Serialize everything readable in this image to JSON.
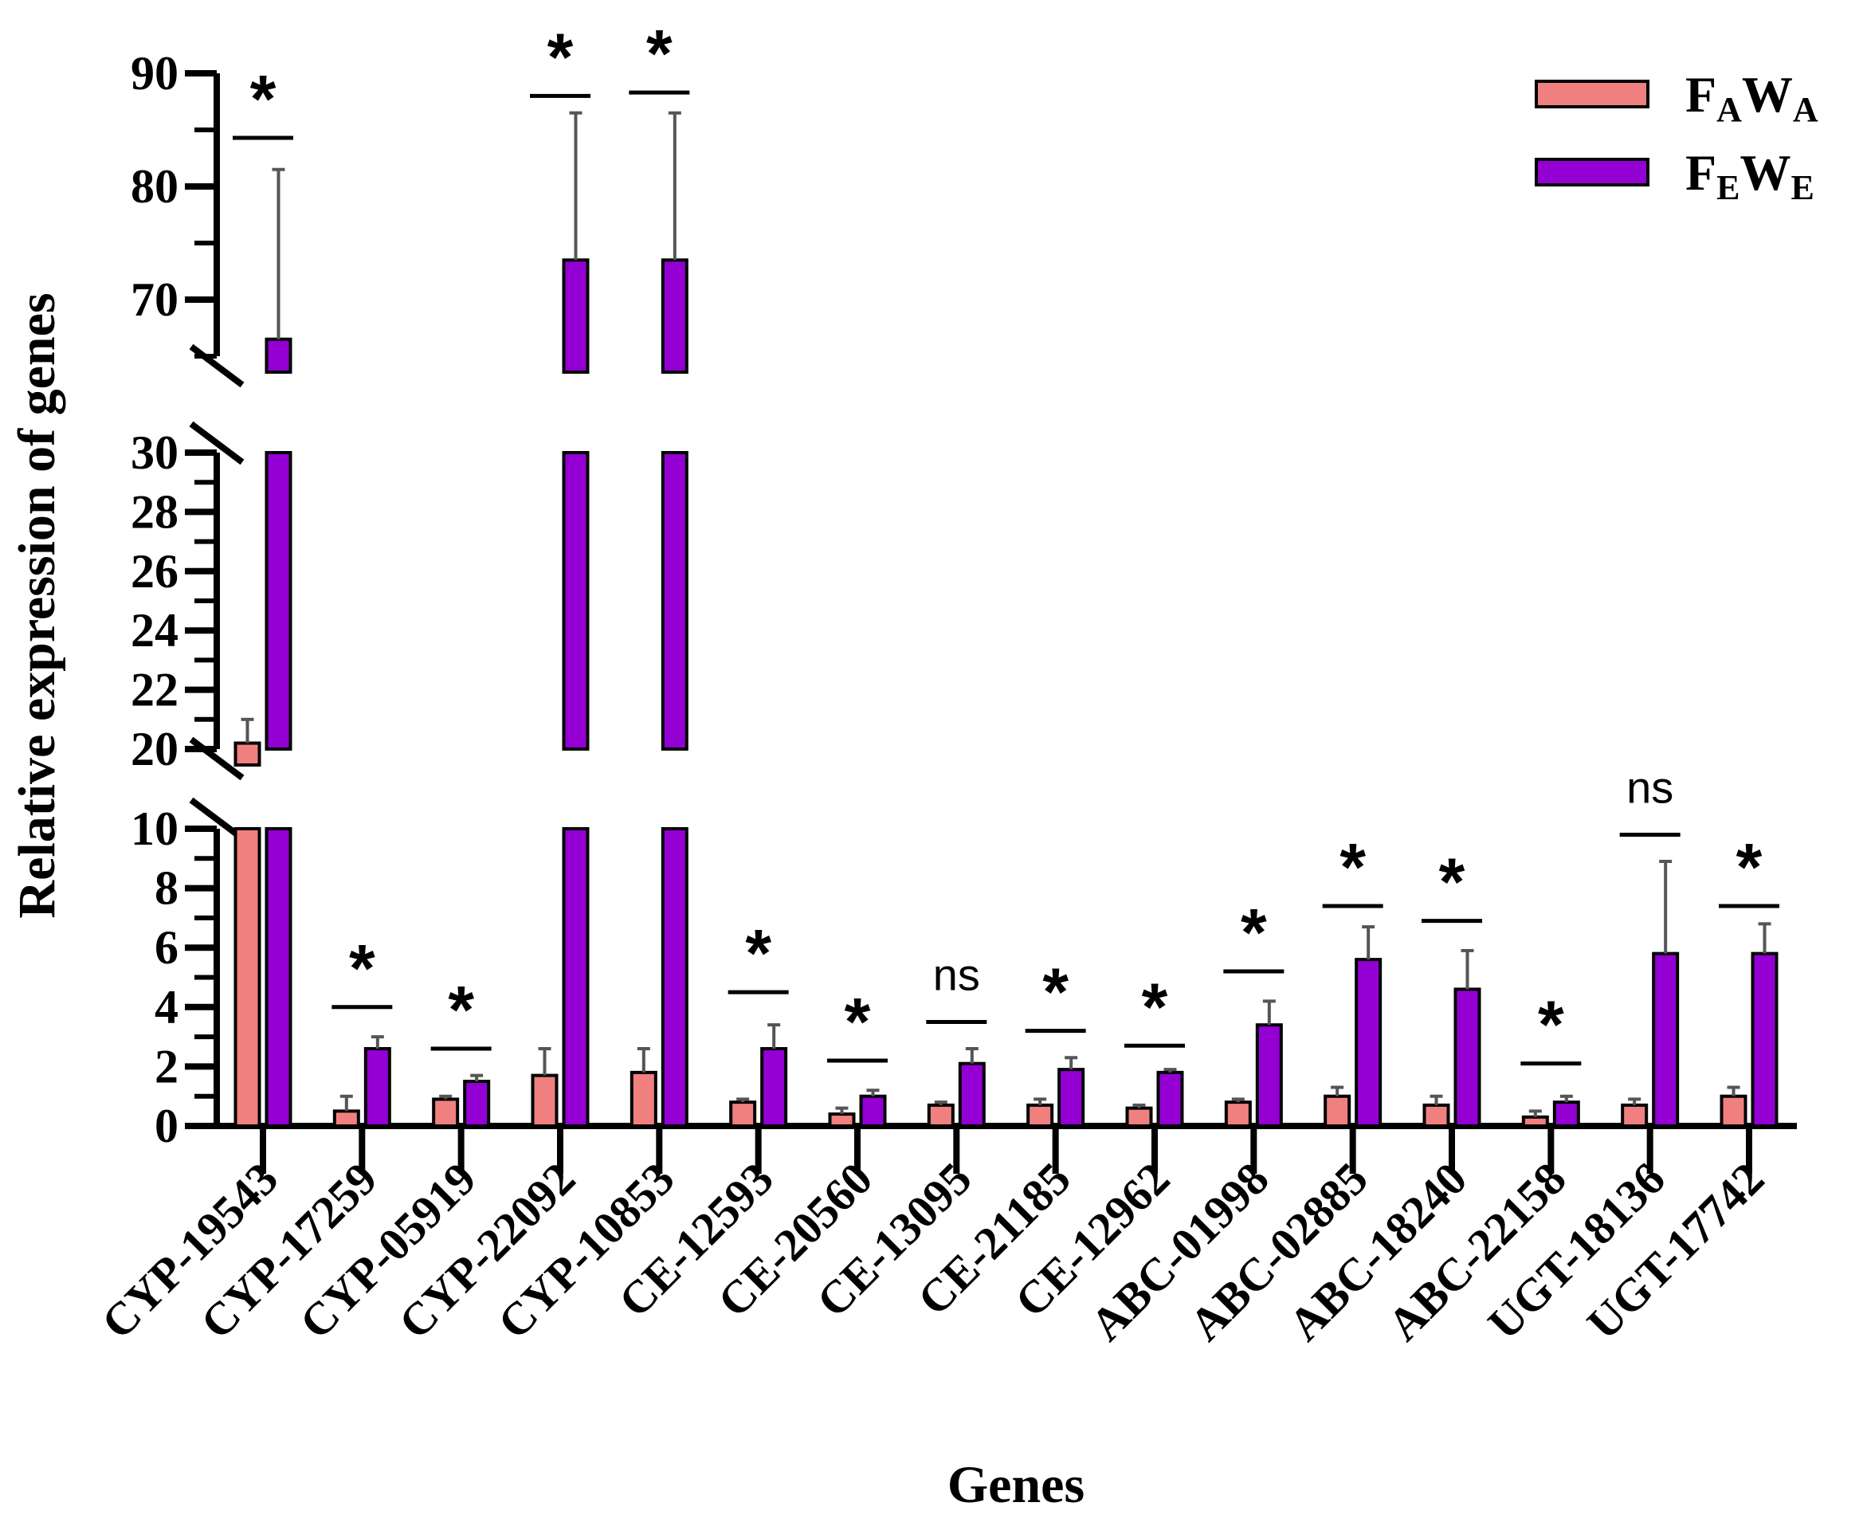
{
  "chart_data": {
    "type": "bar",
    "title": "",
    "xlabel": "Genes",
    "ylabel": "Relative expression of genes",
    "y_axis_breaks": [
      {
        "segment": "lower",
        "range": [
          0,
          10
        ],
        "ticks": [
          "0",
          "2",
          "4",
          "6",
          "8",
          "10"
        ]
      },
      {
        "segment": "middle",
        "range": [
          20,
          30
        ],
        "ticks": [
          "20",
          "22",
          "24",
          "26",
          "28",
          "30"
        ]
      },
      {
        "segment": "upper",
        "range": [
          65,
          90
        ],
        "ticks": [
          "70",
          "80",
          "90"
        ]
      }
    ],
    "categories": [
      "CYP-19543",
      "CYP-17259",
      "CYP-05919",
      "CYP-22092",
      "CYP-10853",
      "CE-12593",
      "CE-20560",
      "CE-13095",
      "CE-21185",
      "CE-12962",
      "ABC-01998",
      "ABC-02885",
      "ABC-18240",
      "ABC-22158",
      "UGT-18136",
      "UGT-17742"
    ],
    "series": [
      {
        "name": "FAWA",
        "label_main": [
          "F",
          "W"
        ],
        "label_sub": [
          "A",
          "A"
        ],
        "color": "#f08080",
        "values": [
          20.2,
          0.5,
          0.9,
          1.7,
          1.8,
          0.8,
          0.4,
          0.7,
          0.7,
          0.6,
          0.8,
          1.0,
          0.7,
          0.3,
          0.7,
          1.0
        ],
        "errors": [
          0.8,
          0.5,
          0.1,
          0.9,
          0.8,
          0.1,
          0.2,
          0.1,
          0.2,
          0.1,
          0.1,
          0.3,
          0.3,
          0.2,
          0.2,
          0.3
        ]
      },
      {
        "name": "FEWE",
        "label_main": [
          "F",
          "W"
        ],
        "label_sub": [
          "E",
          "E"
        ],
        "color": "#9400d3",
        "values": [
          66.5,
          2.6,
          1.5,
          73.5,
          73.5,
          2.6,
          1.0,
          2.1,
          1.9,
          1.8,
          3.4,
          5.6,
          4.6,
          0.8,
          5.8,
          5.8
        ],
        "errors": [
          15.0,
          0.4,
          0.2,
          13.0,
          13.0,
          0.8,
          0.2,
          0.5,
          0.4,
          0.1,
          0.8,
          1.1,
          1.3,
          0.2,
          3.1,
          1.0
        ]
      }
    ],
    "significance": [
      "*",
      "*",
      "*",
      "*",
      "*",
      "*",
      "*",
      "ns",
      "*",
      "*",
      "*",
      "*",
      "*",
      "*",
      "ns",
      "*"
    ],
    "significance_line_y": [
      84.3,
      4.0,
      2.6,
      88.0,
      88.3,
      4.5,
      2.2,
      3.5,
      3.2,
      2.7,
      5.2,
      7.4,
      6.9,
      2.1,
      9.8,
      7.4
    ],
    "legend_position": "top-right"
  }
}
